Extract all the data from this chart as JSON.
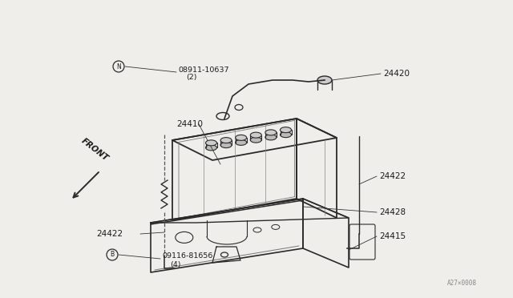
{
  "bg_color": "#f0eeeb",
  "line_color": "#2a2a2a",
  "text_color": "#1a1a1a",
  "fig_width": 6.4,
  "fig_height": 3.72,
  "dpi": 100,
  "watermark": "A27×0008",
  "label_24420": "24420",
  "label_24410": "24410",
  "label_24422a": "24422",
  "label_24422b": "24422",
  "label_24428": "24428",
  "label_24415": "24415",
  "label_N": "N",
  "label_N_part": "08911-10637",
  "label_N_qty": "(2)",
  "label_B": "B",
  "label_B_part": "09116-81656",
  "label_B_qty": "(4)",
  "label_front": "FRONT"
}
